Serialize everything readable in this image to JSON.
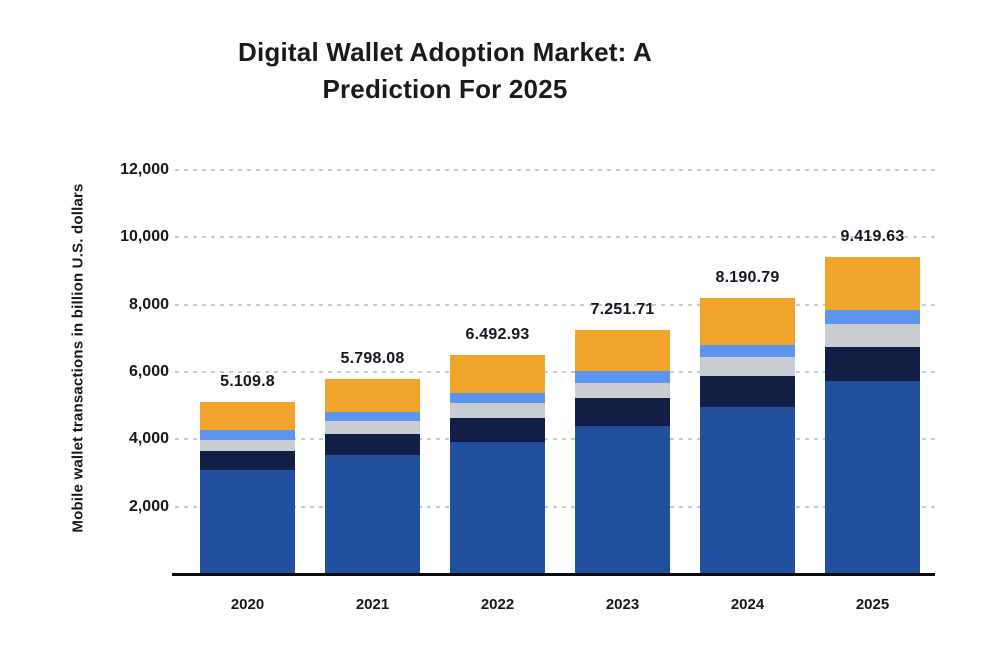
{
  "page": {
    "background_color": "#ffffff",
    "title_color": "#1a1a1a",
    "text_color": "#15181d",
    "gridline_color": "#cbcbcb",
    "axis_color": "#0a0a0a"
  },
  "chart_data": {
    "type": "bar",
    "stacked": true,
    "title": "Digital Wallet Adoption Market: A Prediction For 2025",
    "title_lines": [
      "Digital Wallet Adoption Market: A",
      "Prediction For 2025"
    ],
    "ylabel": "Mobile wallet transactions in billion U.S. dollars",
    "xlabel": "",
    "categories": [
      "2020",
      "2021",
      "2022",
      "2023",
      "2024",
      "2025"
    ],
    "totals": [
      5109.8,
      5798.08,
      6492.93,
      7251.71,
      8190.79,
      9419.63
    ],
    "total_labels": [
      "5.109.8",
      "5.798.08",
      "6.492.93",
      "7.251.71",
      "8.190.79",
      "9.419.63"
    ],
    "series": [
      {
        "name": "royal-blue-segment",
        "color": "#21509E",
        "values": [
          3100,
          3540,
          3930,
          4400,
          4960,
          5730
        ]
      },
      {
        "name": "dark-navy-segment",
        "color": "#111F47",
        "values": [
          560,
          620,
          710,
          830,
          920,
          1020
        ]
      },
      {
        "name": "light-gray-segment",
        "color": "#C9CCD1",
        "values": [
          325,
          370,
          440,
          440,
          560,
          670
        ]
      },
      {
        "name": "light-blue-segment",
        "color": "#5B95EF",
        "values": [
          295,
          270,
          300,
          360,
          360,
          420
        ]
      },
      {
        "name": "orange-segment",
        "color": "#F1A42C",
        "values": [
          829.8,
          998.08,
          1112.93,
          1221.71,
          1390.79,
          1579.63
        ]
      }
    ],
    "yticks": [
      {
        "value": 2000,
        "label": "2,000"
      },
      {
        "value": 4000,
        "label": "4,000"
      },
      {
        "value": 6000,
        "label": "6,000"
      },
      {
        "value": 8000,
        "label": "8,000"
      },
      {
        "value": 10000,
        "label": "10,000"
      },
      {
        "value": 12000,
        "label": "12,000"
      }
    ],
    "ylim": [
      0,
      12600
    ],
    "grid": "horizontal-dashed",
    "legend": "none"
  }
}
